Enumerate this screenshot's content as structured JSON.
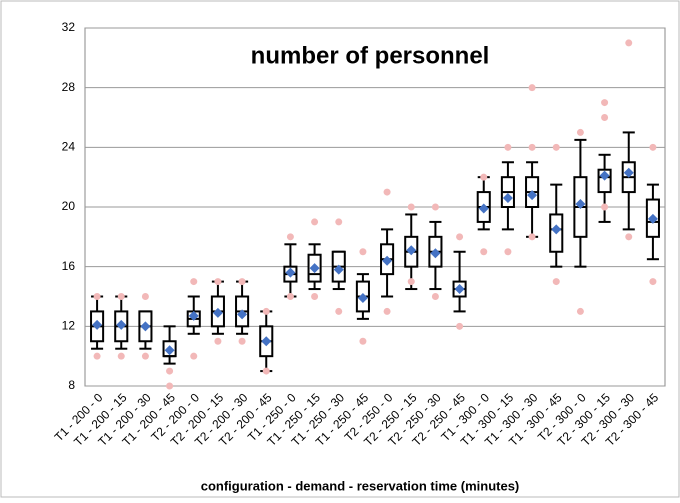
{
  "chart_data": {
    "type": "box",
    "title": "number of personnel",
    "x_label": "configuration - demand - reservation time (minutes)",
    "categories": [
      "T1 - 200 - 0",
      "T1 - 200 - 15",
      "T1 - 200 - 30",
      "T1 - 200 - 45",
      "T2 - 200 - 0",
      "T2 - 200 - 15",
      "T2 - 200 - 30",
      "T2 - 200 - 45",
      "T1 - 250 - 0",
      "T1 - 250 - 15",
      "T1 - 250 - 30",
      "T1 - 250 - 45",
      "T2 - 250 - 0",
      "T2 - 250 - 15",
      "T2 - 250 - 30",
      "T2 - 250 - 45",
      "T1 - 300 - 0",
      "T1 - 300 - 15",
      "T1 - 300 - 30",
      "T1 - 300 - 45",
      "T2 - 300 - 0",
      "T2 - 300 - 15",
      "T2 - 300 - 30",
      "T2 - 300 - 45"
    ],
    "boxes": [
      {
        "low": 10.5,
        "q1": 11,
        "median": 12,
        "q3": 13,
        "high": 14,
        "mean": 12.1,
        "points": [
          10,
          14
        ]
      },
      {
        "low": 10.5,
        "q1": 11,
        "median": 12,
        "q3": 13,
        "high": 14,
        "mean": 12.1,
        "points": [
          10,
          14
        ]
      },
      {
        "low": 10.5,
        "q1": 11,
        "median": 12,
        "q3": 13,
        "high": 13,
        "mean": 12.0,
        "points": [
          10,
          14
        ]
      },
      {
        "low": 9.5,
        "q1": 10,
        "median": 10,
        "q3": 11,
        "high": 12,
        "mean": 10.4,
        "points": [
          8,
          9
        ]
      },
      {
        "low": 11.5,
        "q1": 12,
        "median": 12.5,
        "q3": 13,
        "high": 14,
        "mean": 12.7,
        "points": [
          10,
          15
        ]
      },
      {
        "low": 11.5,
        "q1": 12,
        "median": 13,
        "q3": 14,
        "high": 15,
        "mean": 12.9,
        "points": [
          11,
          15
        ]
      },
      {
        "low": 11.5,
        "q1": 12,
        "median": 13,
        "q3": 14,
        "high": 15,
        "mean": 12.8,
        "points": [
          11,
          15
        ]
      },
      {
        "low": 9,
        "q1": 10,
        "median": 11,
        "q3": 12,
        "high": 13,
        "mean": 11.0,
        "points": [
          9,
          13
        ]
      },
      {
        "low": 14,
        "q1": 15,
        "median": 15.5,
        "q3": 16,
        "high": 17.5,
        "mean": 15.6,
        "points": [
          14,
          18
        ]
      },
      {
        "low": 14.5,
        "q1": 15,
        "median": 15.5,
        "q3": 16.8,
        "high": 17.5,
        "mean": 15.9,
        "points": [
          14,
          19
        ]
      },
      {
        "low": 14.5,
        "q1": 15,
        "median": 16,
        "q3": 17,
        "high": 17,
        "mean": 15.8,
        "points": [
          13,
          19
        ]
      },
      {
        "low": 12.5,
        "q1": 13,
        "median": 14,
        "q3": 15,
        "high": 15.5,
        "mean": 13.9,
        "points": [
          11,
          17
        ]
      },
      {
        "low": 14,
        "q1": 15.5,
        "median": 16.5,
        "q3": 17.5,
        "high": 18.5,
        "mean": 16.4,
        "points": [
          13,
          21
        ]
      },
      {
        "low": 14.5,
        "q1": 16,
        "median": 17,
        "q3": 18,
        "high": 19.5,
        "mean": 17.1,
        "points": [
          15,
          20
        ]
      },
      {
        "low": 14.5,
        "q1": 16,
        "median": 17,
        "q3": 18,
        "high": 19,
        "mean": 16.9,
        "points": [
          14,
          20
        ]
      },
      {
        "low": 13,
        "q1": 14,
        "median": 14.5,
        "q3": 15,
        "high": 17,
        "mean": 14.5,
        "points": [
          12,
          18
        ]
      },
      {
        "low": 18.5,
        "q1": 19,
        "median": 20,
        "q3": 21,
        "high": 22,
        "mean": 19.9,
        "points": [
          17,
          22
        ]
      },
      {
        "low": 18.5,
        "q1": 20,
        "median": 21,
        "q3": 22,
        "high": 23,
        "mean": 20.6,
        "points": [
          17,
          24
        ]
      },
      {
        "low": 18,
        "q1": 20,
        "median": 21,
        "q3": 22,
        "high": 23,
        "mean": 20.8,
        "points": [
          18,
          24,
          28
        ]
      },
      {
        "low": 16,
        "q1": 17,
        "median": 18.5,
        "q3": 19.5,
        "high": 21.5,
        "mean": 18.5,
        "points": [
          15,
          24
        ]
      },
      {
        "low": 16,
        "q1": 18,
        "median": 20,
        "q3": 22,
        "high": 24.5,
        "mean": 20.2,
        "points": [
          13,
          25
        ]
      },
      {
        "low": 19,
        "q1": 21,
        "median": 22,
        "q3": 22.5,
        "high": 23.5,
        "mean": 22.1,
        "points": [
          20,
          26,
          27
        ]
      },
      {
        "low": 18.5,
        "q1": 21,
        "median": 22,
        "q3": 23,
        "high": 25,
        "mean": 22.3,
        "points": [
          18,
          31
        ]
      },
      {
        "low": 16.5,
        "q1": 18,
        "median": 19,
        "q3": 20.5,
        "high": 21.5,
        "mean": 19.2,
        "points": [
          15,
          24
        ]
      }
    ],
    "box_color": "#000000",
    "mean_color": "#4472c4",
    "point_color": "#f2b8b8",
    "ylim": [
      8,
      32
    ],
    "yticks": [
      8,
      12,
      16,
      20,
      24,
      28,
      32
    ],
    "grid": true
  }
}
